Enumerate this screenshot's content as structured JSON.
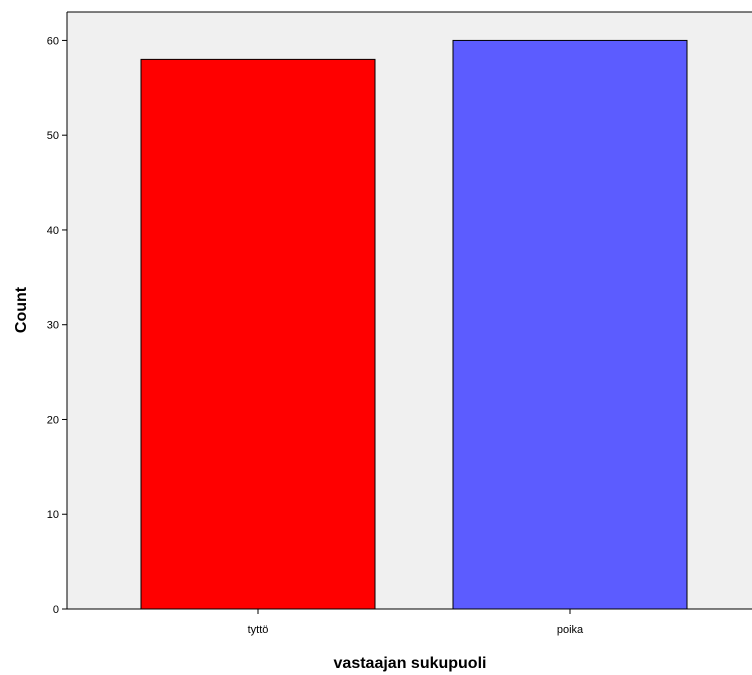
{
  "chart_data": {
    "type": "bar",
    "categories": [
      "tyttö",
      "poika"
    ],
    "values": [
      58,
      60
    ],
    "xlabel": "vastaajan sukupuoli",
    "ylabel": "Count",
    "ylim": [
      0,
      63
    ],
    "yticks": [
      0,
      10,
      20,
      30,
      40,
      50,
      60
    ],
    "grid": false,
    "legend": "none",
    "colors": {
      "bars": [
        "#ff0000",
        "#5c5cff"
      ],
      "plot_background": "#f0f0f0",
      "bar_outline": "#000000"
    }
  }
}
